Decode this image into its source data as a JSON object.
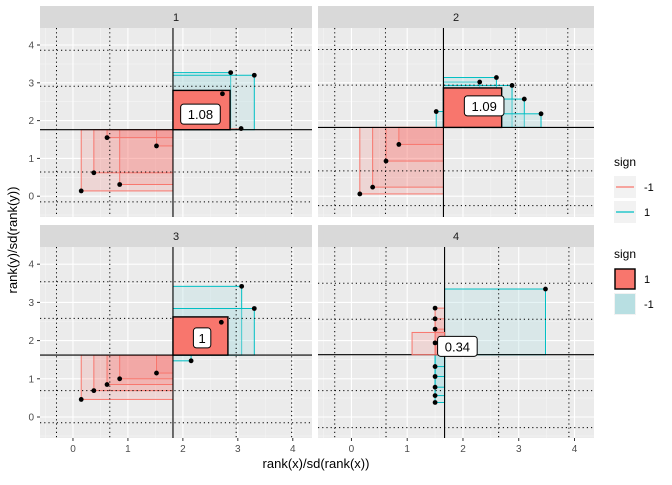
{
  "chart_data": {
    "type": "scatter",
    "xlabel": "rank(x)/sd(rank(x))",
    "ylabel": "rank(y)/sd(rank(y))",
    "xlim": [
      -0.6,
      4.35
    ],
    "ylim": [
      -0.55,
      4.45
    ],
    "x_ticks": [
      0,
      1,
      2,
      3,
      4
    ],
    "y_ticks": [
      0,
      1,
      2,
      3,
      4
    ],
    "grid": true,
    "legends": [
      {
        "title": "sign",
        "kind": "line",
        "entries": [
          {
            "label": "-1",
            "color": "#F8766D"
          },
          {
            "label": "1",
            "color": "#00BFC4"
          }
        ]
      },
      {
        "title": "sign",
        "kind": "fill",
        "entries": [
          {
            "label": "1",
            "color": "#F8766D"
          },
          {
            "label": "-1",
            "color": "#b8dfe2"
          }
        ]
      }
    ],
    "panels": [
      {
        "strip": "1",
        "mean": [
          1.82,
          1.76
        ],
        "dotted_x": [
          -0.3,
          0.67,
          2.97,
          3.98
        ],
        "dotted_y": [
          -0.15,
          0.64,
          2.91,
          3.86
        ],
        "cor_label": "1.08",
        "cor_sign": 1,
        "cor_pos": [
          2.32,
          2.17
        ],
        "points": [
          {
            "x": 0.15,
            "y": 0.14,
            "sign": -1
          },
          {
            "x": 0.38,
            "y": 0.62,
            "sign": -1
          },
          {
            "x": 0.62,
            "y": 1.55,
            "sign": -1
          },
          {
            "x": 0.85,
            "y": 0.31,
            "sign": -1
          },
          {
            "x": 1.52,
            "y": 1.33,
            "sign": -1
          },
          {
            "x": 2.72,
            "y": 2.71,
            "sign": 1
          },
          {
            "x": 2.87,
            "y": 3.27,
            "sign": 1
          },
          {
            "x": 3.06,
            "y": 1.79,
            "sign": -1
          },
          {
            "x": 3.3,
            "y": 3.2,
            "sign": 1
          }
        ]
      },
      {
        "strip": "2",
        "mean": [
          1.65,
          1.82
        ],
        "dotted_x": [
          -0.3,
          0.61,
          2.94,
          3.88
        ],
        "dotted_y": [
          -0.25,
          0.67,
          2.94,
          3.88
        ],
        "cor_label": "1.09",
        "cor_sign": 1,
        "cor_pos": [
          2.38,
          2.39
        ],
        "points": [
          {
            "x": 0.15,
            "y": 0.06,
            "sign": -1
          },
          {
            "x": 0.38,
            "y": 0.24,
            "sign": -1
          },
          {
            "x": 0.62,
            "y": 0.93,
            "sign": -1
          },
          {
            "x": 0.85,
            "y": 1.37,
            "sign": -1
          },
          {
            "x": 1.52,
            "y": 2.24,
            "sign": 1
          },
          {
            "x": 2.3,
            "y": 3.02,
            "sign": 1
          },
          {
            "x": 2.6,
            "y": 3.14,
            "sign": 1
          },
          {
            "x": 2.88,
            "y": 2.93,
            "sign": 1
          },
          {
            "x": 3.1,
            "y": 2.57,
            "sign": 1
          },
          {
            "x": 3.4,
            "y": 2.18,
            "sign": 1
          }
        ]
      },
      {
        "strip": "3",
        "mean": [
          1.82,
          1.62
        ],
        "dotted_x": [
          -0.3,
          0.67,
          2.97,
          3.98
        ],
        "dotted_y": [
          -0.15,
          0.69,
          2.58,
          3.54
        ],
        "cor_label": "1",
        "cor_sign": 1,
        "cor_pos": [
          2.35,
          2.07
        ],
        "points": [
          {
            "x": 0.15,
            "y": 0.46,
            "sign": -1
          },
          {
            "x": 0.38,
            "y": 0.69,
            "sign": -1
          },
          {
            "x": 0.62,
            "y": 0.85,
            "sign": -1
          },
          {
            "x": 0.85,
            "y": 1.0,
            "sign": -1
          },
          {
            "x": 1.52,
            "y": 1.15,
            "sign": -1
          },
          {
            "x": 2.15,
            "y": 1.47,
            "sign": 1
          },
          {
            "x": 2.7,
            "y": 2.48,
            "sign": -1
          },
          {
            "x": 3.07,
            "y": 3.42,
            "sign": 1
          },
          {
            "x": 3.3,
            "y": 2.84,
            "sign": 1
          }
        ]
      },
      {
        "strip": "4",
        "mean": [
          1.67,
          1.63
        ],
        "dotted_x": [
          -0.3,
          0.62,
          2.64,
          3.9
        ],
        "dotted_y": [
          -0.28,
          0.69,
          2.56,
          3.5
        ],
        "cor_label": "0.34",
        "cor_sign": -1,
        "cor_pos": [
          1.9,
          1.85
        ],
        "points": [
          {
            "x": 1.5,
            "y": 0.38,
            "sign": 1
          },
          {
            "x": 1.5,
            "y": 0.56,
            "sign": 1
          },
          {
            "x": 1.5,
            "y": 0.78,
            "sign": 1
          },
          {
            "x": 1.5,
            "y": 1.06,
            "sign": 1
          },
          {
            "x": 1.5,
            "y": 1.32,
            "sign": 1
          },
          {
            "x": 1.5,
            "y": 1.94,
            "sign": -1
          },
          {
            "x": 1.5,
            "y": 2.3,
            "sign": -1
          },
          {
            "x": 1.5,
            "y": 2.57,
            "sign": -1
          },
          {
            "x": 1.5,
            "y": 2.85,
            "sign": -1
          },
          {
            "x": 3.48,
            "y": 3.35,
            "sign": 1
          }
        ]
      }
    ]
  }
}
